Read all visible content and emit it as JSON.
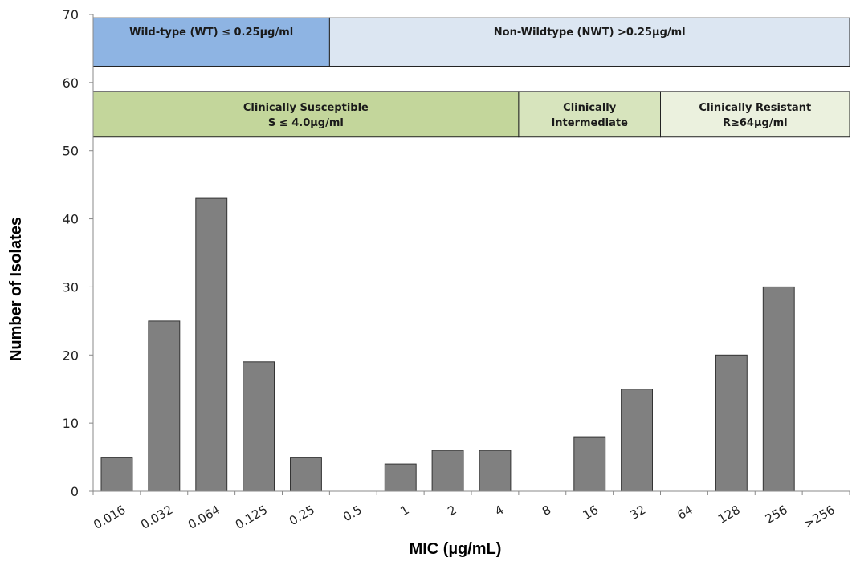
{
  "chart_data": {
    "type": "bar",
    "xlabel": "MIC (µg/mL)",
    "ylabel": "Number of Isolates",
    "ylim": [
      0,
      70
    ],
    "yticks": [
      0,
      10,
      20,
      30,
      40,
      50,
      60,
      70
    ],
    "grid": false,
    "categories": [
      "0.016",
      "0.032",
      "0.064",
      "0.125",
      "0.25",
      "0.5",
      "1",
      "2",
      "4",
      "8",
      "16",
      "32",
      "64",
      "128",
      "256",
      ">256"
    ],
    "values": [
      5,
      25,
      43,
      19,
      5,
      0,
      4,
      6,
      6,
      0,
      8,
      15,
      0,
      20,
      30,
      0
    ],
    "bar_color": "#808080",
    "annotations": {
      "wildtype_row": [
        {
          "lines": [
            "Wild-type (WT) ≤ 0.25µg/ml"
          ],
          "from": "0.016",
          "to": "0.25",
          "fill": "#8eb4e3"
        },
        {
          "lines": [
            "Non-Wildtype (NWT) >0.25µg/ml"
          ],
          "from": "0.5",
          "to": ">256",
          "fill": "#dce6f2"
        }
      ],
      "clinical_row": [
        {
          "lines": [
            "Clinically Susceptible",
            "S ≤ 4.0µg/ml"
          ],
          "from": "0.016",
          "to": "4",
          "fill": "#c3d69b"
        },
        {
          "lines": [
            "Clinically",
            "Intermediate"
          ],
          "from": "8",
          "to": "32",
          "fill": "#d7e4bd"
        },
        {
          "lines": [
            "Clinically Resistant",
            "R≥64µg/ml"
          ],
          "from": "64",
          "to": ">256",
          "fill": "#ebf1de"
        }
      ]
    }
  }
}
